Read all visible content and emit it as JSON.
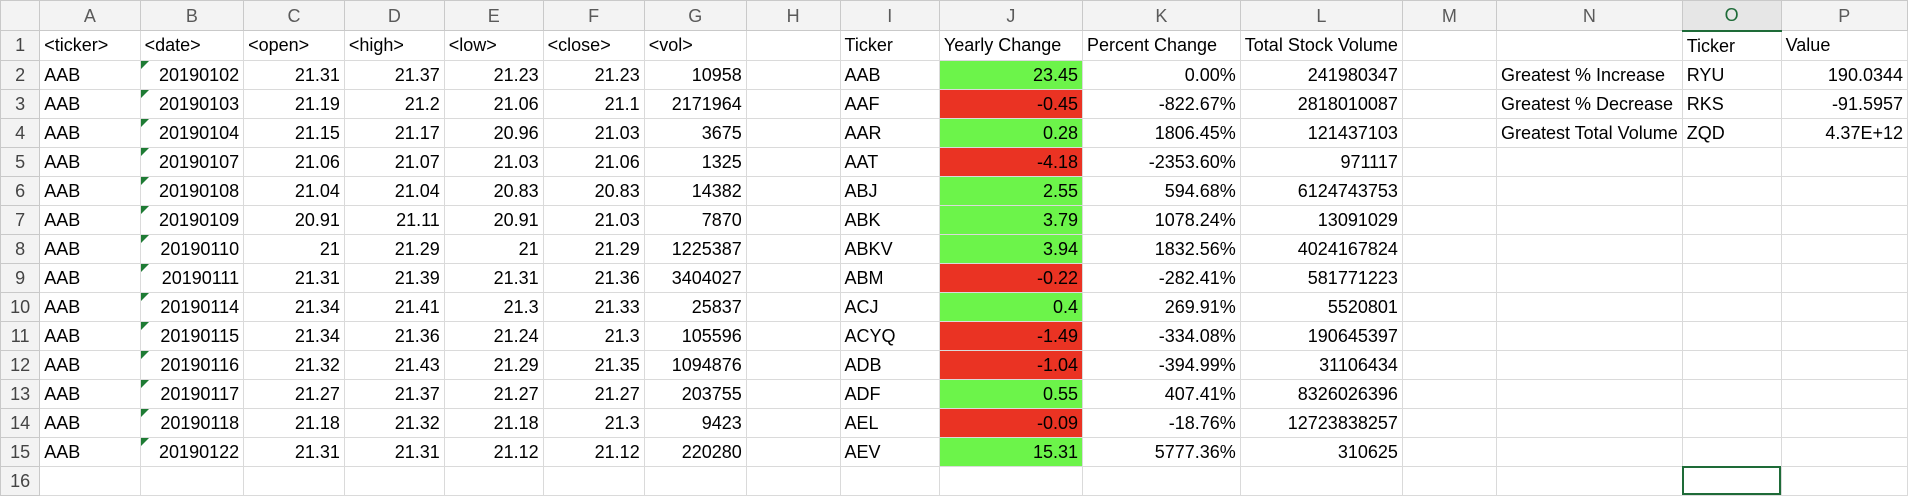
{
  "columns": [
    "A",
    "B",
    "C",
    "D",
    "E",
    "F",
    "G",
    "H",
    "I",
    "J",
    "K",
    "L",
    "M",
    "N",
    "O",
    "P"
  ],
  "selected_column": "O",
  "rows": [
    {
      "n": "1",
      "cells": [
        "<ticker>",
        "<date>",
        "<open>",
        "<high>",
        "<low>",
        "<close>",
        "<vol>",
        "",
        "Ticker",
        "Yearly Change",
        "Percent Change",
        "Total Stock Volume",
        "",
        "",
        "Ticker",
        "Value"
      ]
    },
    {
      "n": "2",
      "cells": [
        "AAB",
        "20190102",
        "21.31",
        "21.37",
        "21.23",
        "21.23",
        "10958",
        "",
        "AAB",
        "23.45",
        "0.00%",
        "241980347",
        "",
        "Greatest % Increase",
        "RYU",
        "190.0344"
      ]
    },
    {
      "n": "3",
      "cells": [
        "AAB",
        "20190103",
        "21.19",
        "21.2",
        "21.06",
        "21.1",
        "2171964",
        "",
        "AAF",
        "-0.45",
        "-822.67%",
        "2818010087",
        "",
        "Greatest % Decrease",
        "RKS",
        "-91.5957"
      ]
    },
    {
      "n": "4",
      "cells": [
        "AAB",
        "20190104",
        "21.15",
        "21.17",
        "20.96",
        "21.03",
        "3675",
        "",
        "AAR",
        "0.28",
        "1806.45%",
        "121437103",
        "",
        "Greatest Total Volume",
        "ZQD",
        "4.37E+12"
      ]
    },
    {
      "n": "5",
      "cells": [
        "AAB",
        "20190107",
        "21.06",
        "21.07",
        "21.03",
        "21.06",
        "1325",
        "",
        "AAT",
        "-4.18",
        "-2353.60%",
        "971117",
        "",
        "",
        "",
        ""
      ]
    },
    {
      "n": "6",
      "cells": [
        "AAB",
        "20190108",
        "21.04",
        "21.04",
        "20.83",
        "20.83",
        "14382",
        "",
        "ABJ",
        "2.55",
        "594.68%",
        "6124743753",
        "",
        "",
        "",
        ""
      ]
    },
    {
      "n": "7",
      "cells": [
        "AAB",
        "20190109",
        "20.91",
        "21.11",
        "20.91",
        "21.03",
        "7870",
        "",
        "ABK",
        "3.79",
        "1078.24%",
        "13091029",
        "",
        "",
        "",
        ""
      ]
    },
    {
      "n": "8",
      "cells": [
        "AAB",
        "20190110",
        "21",
        "21.29",
        "21",
        "21.29",
        "1225387",
        "",
        "ABKV",
        "3.94",
        "1832.56%",
        "4024167824",
        "",
        "",
        "",
        ""
      ]
    },
    {
      "n": "9",
      "cells": [
        "AAB",
        "20190111",
        "21.31",
        "21.39",
        "21.31",
        "21.36",
        "3404027",
        "",
        "ABM",
        "-0.22",
        "-282.41%",
        "581771223",
        "",
        "",
        "",
        ""
      ]
    },
    {
      "n": "10",
      "cells": [
        "AAB",
        "20190114",
        "21.34",
        "21.41",
        "21.3",
        "21.33",
        "25837",
        "",
        "ACJ",
        "0.4",
        "269.91%",
        "5520801",
        "",
        "",
        "",
        ""
      ]
    },
    {
      "n": "11",
      "cells": [
        "AAB",
        "20190115",
        "21.34",
        "21.36",
        "21.24",
        "21.3",
        "105596",
        "",
        "ACYQ",
        "-1.49",
        "-334.08%",
        "190645397",
        "",
        "",
        "",
        ""
      ]
    },
    {
      "n": "12",
      "cells": [
        "AAB",
        "20190116",
        "21.32",
        "21.43",
        "21.29",
        "21.35",
        "1094876",
        "",
        "ADB",
        "-1.04",
        "-394.99%",
        "31106434",
        "",
        "",
        "",
        ""
      ]
    },
    {
      "n": "13",
      "cells": [
        "AAB",
        "20190117",
        "21.27",
        "21.37",
        "21.27",
        "21.27",
        "203755",
        "",
        "ADF",
        "0.55",
        "407.41%",
        "8326026396",
        "",
        "",
        "",
        ""
      ]
    },
    {
      "n": "14",
      "cells": [
        "AAB",
        "20190118",
        "21.18",
        "21.32",
        "21.18",
        "21.3",
        "9423",
        "",
        "AEL",
        "-0.09",
        "-18.76%",
        "12723838257",
        "",
        "",
        "",
        ""
      ]
    },
    {
      "n": "15",
      "cells": [
        "AAB",
        "20190122",
        "21.31",
        "21.31",
        "21.12",
        "21.12",
        "220280",
        "",
        "AEV",
        "15.31",
        "5777.36%",
        "310625",
        "",
        "",
        "",
        ""
      ]
    },
    {
      "n": "16",
      "cells": [
        "",
        "",
        "",
        "",
        "",
        "",
        "",
        "",
        "",
        "",
        "",
        "",
        "",
        "",
        "",
        ""
      ]
    }
  ],
  "colors": {
    "positive_fill": "#6cf44a",
    "negative_fill": "#ea3323",
    "selection": "#1e6b38"
  }
}
